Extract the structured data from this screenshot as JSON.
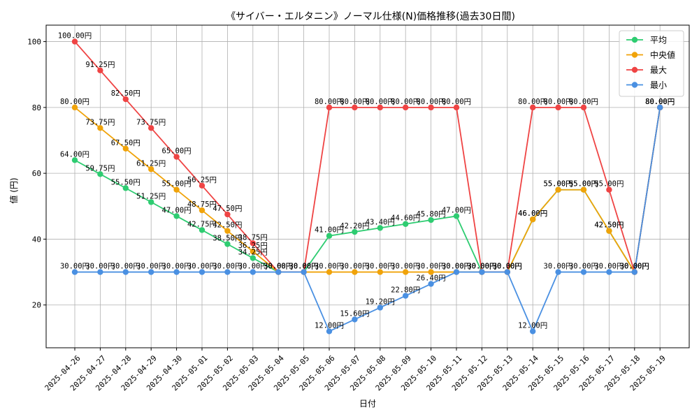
{
  "chart_data": {
    "type": "line",
    "title": "《サイバー・エルタニン》ノーマル仕様(N)価格推移(過去30日間)",
    "xlabel": "日付",
    "ylabel": "値 (円)",
    "ylim": [
      7,
      105
    ],
    "yticks": [
      20,
      40,
      60,
      80,
      100
    ],
    "grid": true,
    "legend_position": "top-right",
    "value_suffix": "円",
    "categories": [
      "2025-04-26",
      "2025-04-27",
      "2025-04-28",
      "2025-04-29",
      "2025-04-30",
      "2025-05-01",
      "2025-05-02",
      "2025-05-03",
      "2025-05-04",
      "2025-05-05",
      "2025-05-06",
      "2025-05-07",
      "2025-05-08",
      "2025-05-09",
      "2025-05-10",
      "2025-05-11",
      "2025-05-12",
      "2025-05-13",
      "2025-05-14",
      "2025-05-15",
      "2025-05-16",
      "2025-05-17",
      "2025-05-18",
      "2025-05-19"
    ],
    "series": [
      {
        "name": "平均",
        "color": "#2ecc71",
        "values": [
          64.0,
          59.75,
          55.5,
          51.25,
          47.0,
          42.75,
          38.5,
          34.25,
          30.0,
          30.0,
          41.0,
          42.2,
          43.4,
          44.6,
          45.8,
          47.0,
          30.0,
          30.0,
          46.0,
          55.0,
          55.0,
          42.5,
          30.0,
          80.0
        ]
      },
      {
        "name": "中央値",
        "color": "#f0a30a",
        "values": [
          80.0,
          73.75,
          67.5,
          61.25,
          55.0,
          48.75,
          42.5,
          36.25,
          30.0,
          30.0,
          30.0,
          30.0,
          30.0,
          30.0,
          30.0,
          30.0,
          30.0,
          30.0,
          46.0,
          55.0,
          55.0,
          42.5,
          30.0,
          80.0
        ]
      },
      {
        "name": "最大",
        "color": "#ef4444",
        "values": [
          100.0,
          91.25,
          82.5,
          73.75,
          65.0,
          56.25,
          47.5,
          38.75,
          30.0,
          30.0,
          80.0,
          80.0,
          80.0,
          80.0,
          80.0,
          80.0,
          30.0,
          30.0,
          80.0,
          80.0,
          80.0,
          55.0,
          30.0,
          80.0
        ]
      },
      {
        "name": "最小",
        "color": "#4a90e2",
        "values": [
          30.0,
          30.0,
          30.0,
          30.0,
          30.0,
          30.0,
          30.0,
          30.0,
          30.0,
          30.0,
          12.0,
          15.6,
          19.2,
          22.8,
          26.4,
          30.0,
          30.0,
          30.0,
          12.0,
          30.0,
          30.0,
          30.0,
          30.0,
          80.0
        ]
      }
    ]
  }
}
